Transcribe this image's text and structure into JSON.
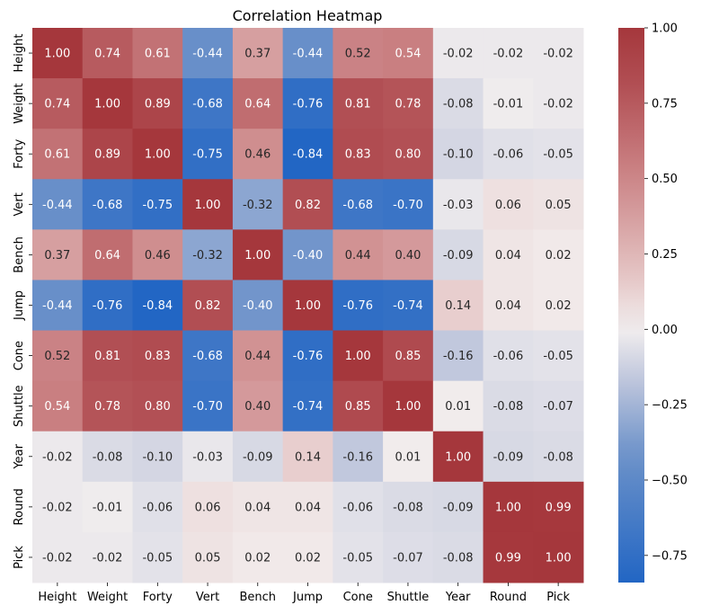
{
  "chart_data": {
    "type": "heatmap",
    "title": "Correlation Heatmap",
    "xlabel": "",
    "ylabel": "",
    "x_categories": [
      "Height",
      "Weight",
      "Forty",
      "Vert",
      "Bench",
      "Jump",
      "Cone",
      "Shuttle",
      "Year",
      "Round",
      "Pick"
    ],
    "y_categories": [
      "Height",
      "Weight",
      "Forty",
      "Vert",
      "Bench",
      "Jump",
      "Cone",
      "Shuttle",
      "Year",
      "Round",
      "Pick"
    ],
    "values": [
      [
        1.0,
        0.74,
        0.61,
        -0.44,
        0.37,
        -0.44,
        0.52,
        0.54,
        -0.02,
        -0.02,
        -0.02
      ],
      [
        0.74,
        1.0,
        0.89,
        -0.68,
        0.64,
        -0.76,
        0.81,
        0.78,
        -0.08,
        -0.01,
        -0.02
      ],
      [
        0.61,
        0.89,
        1.0,
        -0.75,
        0.46,
        -0.84,
        0.83,
        0.8,
        -0.1,
        -0.06,
        -0.05
      ],
      [
        -0.44,
        -0.68,
        -0.75,
        1.0,
        -0.32,
        0.82,
        -0.68,
        -0.7,
        -0.03,
        0.06,
        0.05
      ],
      [
        0.37,
        0.64,
        0.46,
        -0.32,
        1.0,
        -0.4,
        0.44,
        0.4,
        -0.09,
        0.04,
        0.02
      ],
      [
        -0.44,
        -0.76,
        -0.84,
        0.82,
        -0.4,
        1.0,
        -0.76,
        -0.74,
        0.14,
        0.04,
        0.02
      ],
      [
        0.52,
        0.81,
        0.83,
        -0.68,
        0.44,
        -0.76,
        1.0,
        0.85,
        -0.16,
        -0.06,
        -0.05
      ],
      [
        0.54,
        0.78,
        0.8,
        -0.7,
        0.4,
        -0.74,
        0.85,
        1.0,
        0.01,
        -0.08,
        -0.07
      ],
      [
        -0.02,
        -0.08,
        -0.1,
        -0.03,
        -0.09,
        0.14,
        -0.16,
        0.01,
        1.0,
        -0.09,
        -0.08
      ],
      [
        -0.02,
        -0.01,
        -0.06,
        0.06,
        0.04,
        0.04,
        -0.06,
        -0.08,
        -0.09,
        1.0,
        0.99
      ],
      [
        -0.02,
        -0.02,
        -0.05,
        0.05,
        0.02,
        0.02,
        -0.05,
        -0.07,
        -0.08,
        0.99,
        1.0
      ]
    ],
    "value_format": "2 decimals",
    "colormap": "vlag (blue-white-red, centered at 0)",
    "color_range": [
      -0.84,
      1.0
    ],
    "colorbar": {
      "ticks": [
        -0.75,
        -0.5,
        -0.25,
        0.0,
        0.25,
        0.5,
        0.75,
        1.0
      ],
      "tick_labels": [
        "−0.75",
        "−0.50",
        "−0.25",
        "0.00",
        "0.25",
        "0.50",
        "0.75",
        "1.00"
      ],
      "placement": "right"
    },
    "colors": {
      "negative": "#2266c4",
      "neutral": "#f2eeee",
      "positive": "#a5373c"
    },
    "grid": false
  }
}
